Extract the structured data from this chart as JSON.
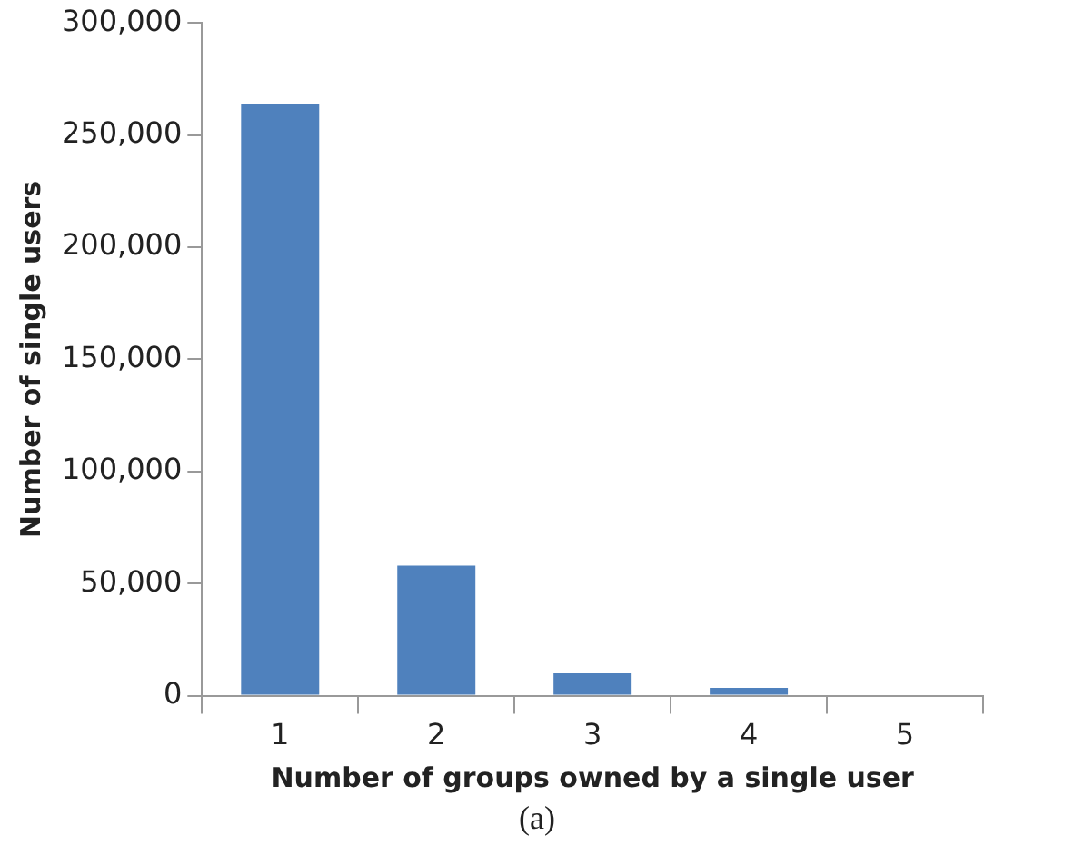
{
  "chart_data": {
    "type": "bar",
    "categories": [
      "1",
      "2",
      "3",
      "4",
      "5"
    ],
    "values": [
      264000,
      58000,
      10000,
      3500,
      0
    ],
    "color": "#4f81bd",
    "xlabel": "Number of groups owned by a single user",
    "ylabel": "Number of single users",
    "ylim": [
      0,
      300000
    ],
    "yticks": [
      {
        "value": 0,
        "label": "0"
      },
      {
        "value": 50000,
        "label": "50,000"
      },
      {
        "value": 100000,
        "label": "100,000"
      },
      {
        "value": 150000,
        "label": "150,000"
      },
      {
        "value": 200000,
        "label": "200,000"
      },
      {
        "value": 250000,
        "label": "250,000"
      },
      {
        "value": 300000,
        "label": "300,000"
      }
    ],
    "grid": false,
    "legend": false,
    "annotations": [
      "(a)"
    ]
  }
}
